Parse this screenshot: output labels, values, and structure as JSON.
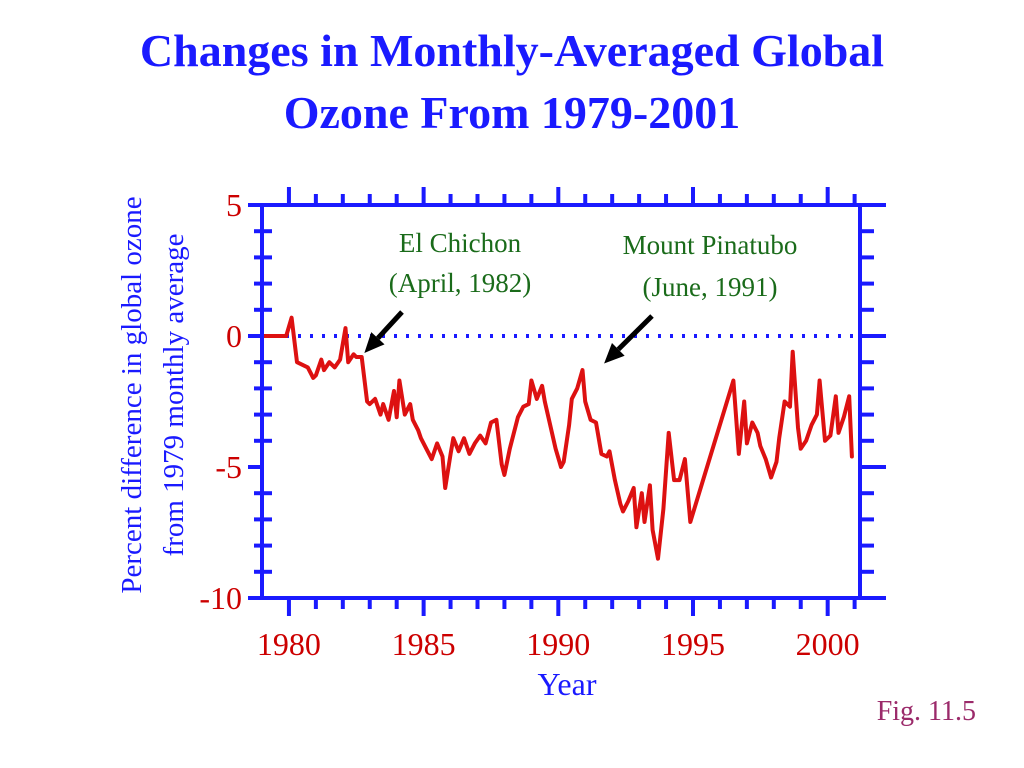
{
  "slide": {
    "title_line1": "Changes in Monthly-Averaged Global",
    "title_line2": "Ozone From 1979-2001",
    "figure_label": "Fig. 11.5"
  },
  "colors": {
    "title": "#1a1aff",
    "axes": "#1a1aff",
    "tick_labels": "#cc0000",
    "series": "#dd1111",
    "annotations": "#1a6b1a",
    "zero_line": "#1a1aff",
    "figure_label": "#9b2a6a"
  },
  "chart_data": {
    "type": "line",
    "title": "",
    "xlabel": "Year",
    "ylabel_line1": "Percent difference in global ozone",
    "ylabel_line2": "from 1979 monthly average",
    "xlim": [
      1979,
      2001.2
    ],
    "ylim": [
      -10,
      5
    ],
    "x_ticks": [
      1980,
      1985,
      1990,
      1995,
      2000
    ],
    "x_tick_labels": [
      "1980",
      "1985",
      "1990",
      "1995",
      "2000"
    ],
    "y_ticks": [
      5,
      0,
      -5,
      -10
    ],
    "y_tick_labels": [
      "5",
      "0",
      "-5",
      "-10"
    ],
    "reference_line": {
      "y": 0,
      "style": "dotted"
    },
    "grid": false,
    "annotations": [
      {
        "line1": "El Chichon",
        "line2": "(April, 1982)",
        "arrow_to": [
          1982.8,
          -0.8
        ]
      },
      {
        "line1": "Mount Pinatubo",
        "line2": "(June, 1991)",
        "arrow_to": [
          1991.7,
          -1.2
        ]
      }
    ],
    "series": [
      {
        "x": [
          1979.0,
          1979.9,
          1980.1,
          1980.3,
          1980.5,
          1980.7,
          1980.9,
          1981.0,
          1981.2,
          1981.3,
          1981.5,
          1981.7,
          1981.9,
          1982.1,
          1982.2,
          1982.4,
          1982.5,
          1982.7,
          1982.9,
          1983.0,
          1983.2,
          1983.4,
          1983.5,
          1983.7,
          1983.9,
          1984.0,
          1984.1,
          1984.3,
          1984.5,
          1984.6,
          1984.8,
          1984.9,
          1985.1,
          1985.3,
          1985.5,
          1985.7,
          1985.8,
          1986.0,
          1986.1,
          1986.3,
          1986.5,
          1986.7,
          1986.9,
          1987.1,
          1987.3,
          1987.5,
          1987.7,
          1987.9,
          1988.0,
          1988.2,
          1988.4,
          1988.5,
          1988.7,
          1988.9,
          1989.0,
          1989.2,
          1989.4,
          1989.5,
          1989.7,
          1989.9,
          1990.1,
          1990.2,
          1990.4,
          1990.5,
          1990.7,
          1990.9,
          1991.0,
          1991.2,
          1991.4,
          1991.6,
          1991.8,
          1991.9,
          1992.1,
          1992.3,
          1992.4,
          1992.6,
          1992.8,
          1992.9,
          1993.1,
          1993.2,
          1993.4,
          1993.5,
          1993.7,
          1993.9,
          1994.1,
          1994.3,
          1994.5,
          1994.7,
          1994.9,
          1996.5,
          1996.7,
          1996.9,
          1997.0,
          1997.2,
          1997.4,
          1997.5,
          1997.7,
          1997.9,
          1998.1,
          1998.2,
          1998.4,
          1998.6,
          1998.7,
          1998.9,
          1999.0,
          1999.2,
          1999.4,
          1999.6,
          1999.7,
          1999.9,
          2000.1,
          2000.3,
          2000.4,
          2000.6,
          2000.8,
          2000.9
        ],
        "y": [
          0.0,
          0.0,
          0.7,
          -1.0,
          -1.1,
          -1.2,
          -1.6,
          -1.5,
          -0.9,
          -1.3,
          -1.0,
          -1.2,
          -0.9,
          0.3,
          -1.0,
          -0.7,
          -0.8,
          -0.8,
          -2.5,
          -2.6,
          -2.4,
          -3.0,
          -2.6,
          -3.2,
          -2.1,
          -3.1,
          -1.7,
          -3.0,
          -2.6,
          -3.2,
          -3.6,
          -3.9,
          -4.3,
          -4.7,
          -4.1,
          -4.6,
          -5.8,
          -4.5,
          -3.9,
          -4.4,
          -3.9,
          -4.5,
          -4.1,
          -3.8,
          -4.1,
          -3.3,
          -3.2,
          -4.9,
          -5.3,
          -4.3,
          -3.5,
          -3.1,
          -2.7,
          -2.6,
          -1.7,
          -2.4,
          -1.9,
          -2.5,
          -3.4,
          -4.3,
          -5.0,
          -4.8,
          -3.4,
          -2.4,
          -2.0,
          -1.3,
          -2.5,
          -3.2,
          -3.3,
          -4.5,
          -4.6,
          -4.4,
          -5.5,
          -6.4,
          -6.7,
          -6.3,
          -5.8,
          -7.3,
          -6.0,
          -7.1,
          -5.7,
          -7.4,
          -8.5,
          -6.6,
          -3.7,
          -5.5,
          -5.5,
          -4.7,
          -7.1,
          -1.7,
          -4.5,
          -2.5,
          -4.1,
          -3.3,
          -3.7,
          -4.2,
          -4.7,
          -5.4,
          -4.8,
          -3.9,
          -2.5,
          -2.7,
          -0.6,
          -3.5,
          -4.3,
          -4.0,
          -3.4,
          -3.0,
          -1.7,
          -4.0,
          -3.8,
          -2.3,
          -3.7,
          -3.1,
          -2.3,
          -4.6
        ]
      }
    ]
  }
}
